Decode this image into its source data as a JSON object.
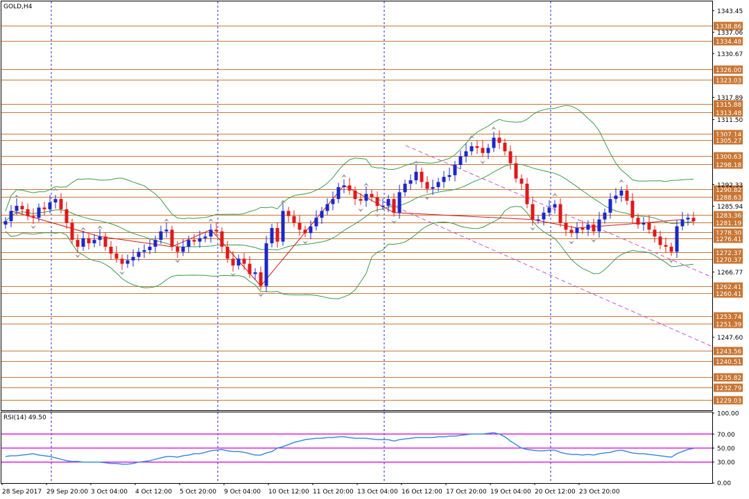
{
  "chart_title": "GOLD,H4",
  "rsi_label": "RSI(14) 49.50",
  "colors": {
    "grid_vline": "#1e2ed8",
    "level_line": "#c87533",
    "bull": "#1b27c9",
    "bear": "#e01919",
    "bands": "#3a9a4a",
    "channel": "#c552d8",
    "zigzag": "#d01818",
    "rsi_line": "#3a8fe0",
    "rsi_level": "#e020e0"
  },
  "chart_data": {
    "type": "candlestick",
    "symbol": "GOLD",
    "timeframe": "H4",
    "y_range": [
      1226,
      1346
    ],
    "y_ticks": [
      1343.45,
      1337.06,
      1330.67,
      1317.89,
      1311.5,
      1292.33,
      1285.94,
      1266.77,
      1247.6
    ],
    "price_levels": [
      1338.86,
      1334.48,
      1326.0,
      1323.03,
      1315.88,
      1313.48,
      1307.14,
      1305.27,
      1300.63,
      1298.18,
      1290.82,
      1288.63,
      1283.36,
      1281.19,
      1278.3,
      1276.41,
      1272.37,
      1270.37,
      1262.41,
      1260.41,
      1253.74,
      1251.39,
      1243.56,
      1240.51,
      1235.82,
      1232.79,
      1229.03
    ],
    "x_ticks": [
      "28 Sep 2017",
      "29 Sep 20:00",
      "3 Oct 04:00",
      "4 Oct 12:00",
      "5 Oct 20:00",
      "9 Oct 04:00",
      "10 Oct 12:00",
      "11 Oct 20:00",
      "13 Oct 04:00",
      "16 Oct 12:00",
      "17 Oct 20:00",
      "19 Oct 04:00",
      "20 Oct 12:00",
      "23 Oct 20:00"
    ],
    "closes": [
      1281.5,
      1284.5,
      1286.0,
      1285.0,
      1283.0,
      1282.5,
      1285.5,
      1285.0,
      1287.0,
      1288.0,
      1285.0,
      1281.0,
      1276.0,
      1274.0,
      1276.5,
      1275.0,
      1276.0,
      1277.0,
      1274.0,
      1272.0,
      1270.5,
      1269.0,
      1270.0,
      1271.0,
      1272.5,
      1273.0,
      1274.0,
      1276.0,
      1278.5,
      1279.0,
      1274.0,
      1272.5,
      1274.0,
      1276.0,
      1275.5,
      1276.5,
      1277.0,
      1279.0,
      1278.5,
      1274.0,
      1270.5,
      1268.5,
      1270.5,
      1269.0,
      1266.0,
      1266.5,
      1262.5,
      1275.0,
      1279.5,
      1275.5,
      1284.5,
      1283.0,
      1281.0,
      1279.0,
      1278.0,
      1280.0,
      1282.5,
      1284.5,
      1286.5,
      1288.0,
      1291.5,
      1292.0,
      1290.5,
      1288.0,
      1287.5,
      1289.5,
      1288.5,
      1286.0,
      1286.0,
      1288.0,
      1284.0,
      1290.0,
      1292.5,
      1293.5,
      1296.0,
      1293.0,
      1291.0,
      1291.5,
      1293.0,
      1294.5,
      1295.0,
      1298.0,
      1300.5,
      1302.0,
      1303.5,
      1303.0,
      1301.5,
      1303.0,
      1306.0,
      1304.5,
      1302.0,
      1298.5,
      1294.0,
      1292.5,
      1286.5,
      1282.0,
      1282.0,
      1284.0,
      1285.5,
      1286.5,
      1281.0,
      1279.0,
      1278.0,
      1279.5,
      1279.0,
      1280.5,
      1278.5,
      1282.0,
      1284.0,
      1288.0,
      1289.0,
      1290.5,
      1287.5,
      1282.5,
      1280.5,
      1281.0,
      1279.0,
      1277.0,
      1274.5,
      1274.0,
      1272.5,
      1280.0,
      1282.0,
      1282.5,
      1281.5
    ],
    "indicator": {
      "name": "RSI(14)",
      "last_value": 49.5,
      "y_range": [
        0,
        100
      ],
      "y_ticks": [
        100.0,
        70.0,
        50.0,
        30.0,
        0.0
      ],
      "levels": [
        70,
        50,
        30
      ],
      "values": [
        38,
        39,
        39,
        40,
        41,
        42,
        40,
        39,
        38,
        36,
        34,
        32,
        31,
        31,
        30,
        30,
        30,
        30,
        29,
        28,
        28,
        27,
        27,
        28,
        30,
        31,
        32,
        34,
        36,
        38,
        38,
        37,
        39,
        40,
        42,
        42,
        44,
        46,
        47,
        48,
        46,
        45,
        45,
        44,
        42,
        40,
        40,
        43,
        45,
        50,
        52,
        55,
        58,
        60,
        62,
        63,
        64,
        64,
        65,
        65,
        66,
        66,
        65,
        64,
        64,
        64,
        63,
        62,
        62,
        62,
        60,
        62,
        63,
        64,
        65,
        65,
        65,
        65,
        66,
        66,
        67,
        67,
        68,
        69,
        70,
        70,
        70,
        71,
        72,
        70,
        66,
        60,
        55,
        50,
        48,
        47,
        46,
        46,
        47,
        47,
        44,
        42,
        41,
        41,
        40,
        41,
        40,
        42,
        43,
        44,
        46,
        47,
        45,
        43,
        42,
        42,
        41,
        40,
        39,
        38,
        37,
        42,
        45,
        48,
        49.5
      ]
    }
  }
}
